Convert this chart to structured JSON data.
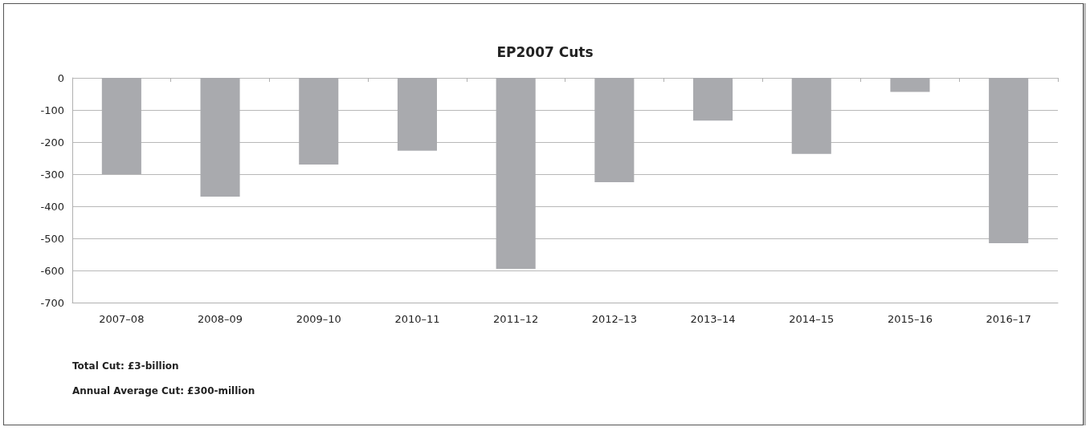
{
  "chart_data": {
    "type": "bar",
    "title": "EP2007 Cuts",
    "categories": [
      "2007–08",
      "2008–09",
      "2009–10",
      "2010–11",
      "2011–12",
      "2012–13",
      "2013–14",
      "2014–15",
      "2015–16",
      "2016–17"
    ],
    "values": [
      -300,
      -370,
      -270,
      -227,
      -595,
      -325,
      -133,
      -237,
      -44,
      -515
    ],
    "color": "#a9aaae",
    "ylim": [
      -700,
      0
    ],
    "yticks": [
      -700,
      -600,
      -500,
      -400,
      -300,
      -200,
      -100,
      0
    ],
    "grid": "y",
    "annotations": [
      "Total Cut: £3-billion",
      "Annual Average Cut: £300-million"
    ]
  }
}
